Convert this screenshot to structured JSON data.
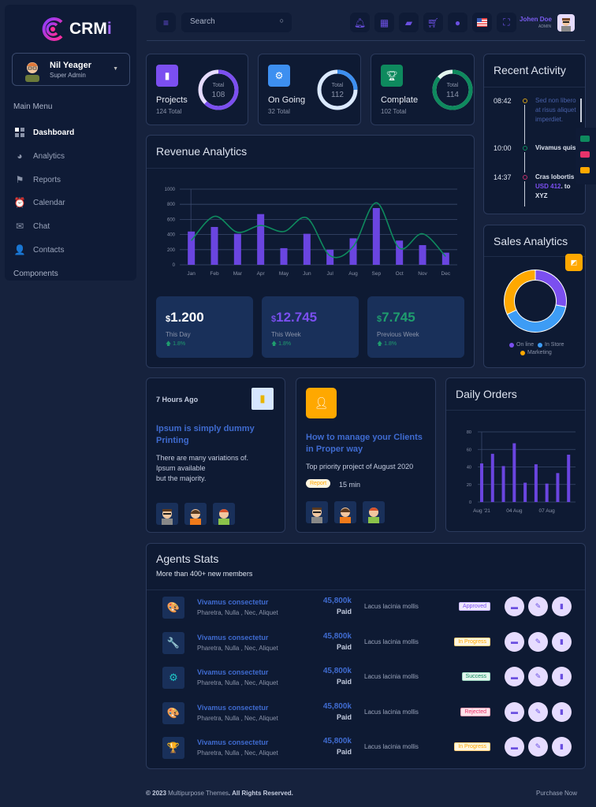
{
  "brand": {
    "name": "CRM",
    "accent": "i"
  },
  "sidebar": {
    "user": {
      "name": "Nil Yeager",
      "role": "Super Admin"
    },
    "section_main": "Main Menu",
    "items": [
      {
        "label": "Dashboard",
        "icon": "grid-icon",
        "active": true
      },
      {
        "label": "Analytics",
        "icon": "pie-icon"
      },
      {
        "label": "Reports",
        "icon": "flag-icon"
      },
      {
        "label": "Calendar",
        "icon": "alarm-icon"
      },
      {
        "label": "Chat",
        "icon": "chat-icon"
      },
      {
        "label": "Contacts",
        "icon": "add-user-icon"
      }
    ],
    "section_components": "Components"
  },
  "topbar": {
    "search_placeholder": "Search",
    "user": {
      "name": "Johen Doe",
      "role": "ADMIN"
    }
  },
  "stats": [
    {
      "title": "Projects",
      "sub": "124 Total",
      "ring_label": "Total",
      "ring_value": "108",
      "color": "#7b4ff0"
    },
    {
      "title": "On Going",
      "sub": "32 Total",
      "ring_label": "Total",
      "ring_value": "112",
      "color": "#3d8ff0"
    },
    {
      "title": "Complate",
      "sub": "102 Total",
      "ring_label": "Total",
      "ring_value": "114",
      "color": "#0e8a5e"
    }
  ],
  "revenue": {
    "title": "Revenue Analytics",
    "boxes": [
      {
        "currency": "$",
        "value": "1.200",
        "label": "This Day",
        "change": "1.8%",
        "color": "#ffffff"
      },
      {
        "currency": "$",
        "value": "12.745",
        "label": "This Week",
        "change": "1.8%",
        "color": "#7b4ff0"
      },
      {
        "currency": "$",
        "value": "7.745",
        "label": "Previous Week",
        "change": "1.8%",
        "color": "#1f9d6e"
      }
    ]
  },
  "recent_activity": {
    "title": "Recent Activity",
    "items": [
      {
        "time": "08:42",
        "text": "Sed non libero at risus aliquet imperdiet."
      },
      {
        "time": "10:00",
        "text": "Vivamus quis"
      },
      {
        "time": "14:37",
        "text_pre": "Cras lobortis",
        "highlight": "USD 412",
        "text_post": ". to XYZ"
      }
    ]
  },
  "sales_analytics": {
    "title": "Sales Analytics",
    "legend": [
      "On line",
      "In Store",
      "Marketing"
    ]
  },
  "news": [
    {
      "date": "7 Hours Ago",
      "title": "Ipsum is simply dummy Printing",
      "body": [
        "There are many variations of.",
        "Ipsum available",
        "but the majority."
      ]
    },
    {
      "title": "How to manage your Clients in Proper way",
      "body": "Top priority project of August 2020",
      "tag": "Report",
      "duration": "15 min"
    }
  ],
  "daily_orders": {
    "title": "Daily Orders"
  },
  "agents": {
    "title": "Agents Stats",
    "subtitle": "More than 400+ new members",
    "rows": [
      {
        "name": "Vivamus consectetur",
        "sub": "Pharetra, Nulla , Nec, Aliquet",
        "amount": "45,800k",
        "paid": "Paid",
        "desc": "Lacus lacinia mollis",
        "status": "Approved",
        "icon": "palette-swatch-icon"
      },
      {
        "name": "Vivamus consectetur",
        "sub": "Pharetra, Nulla , Nec, Aliquet",
        "amount": "45,800k",
        "paid": "Paid",
        "desc": "Lacus lacinia mollis",
        "status": "In Progress",
        "icon": "wrench-gear-icon"
      },
      {
        "name": "Vivamus consectetur",
        "sub": "Pharetra, Nulla , Nec, Aliquet",
        "amount": "45,800k",
        "paid": "Paid",
        "desc": "Lacus lacinia mollis",
        "status": "Success",
        "icon": "gear-check-icon"
      },
      {
        "name": "Vivamus consectetur",
        "sub": "Pharetra, Nulla , Nec, Aliquet",
        "amount": "45,800k",
        "paid": "Paid",
        "desc": "Lacus lacinia mollis",
        "status": "Rejected",
        "icon": "paint-palette-icon"
      },
      {
        "name": "Vivamus consectetur",
        "sub": "Pharetra, Nulla , Nec, Aliquet",
        "amount": "45,800k",
        "paid": "Paid",
        "desc": "Lacus lacinia mollis",
        "status": "In Progress",
        "icon": "trophy-icon"
      }
    ]
  },
  "footer": {
    "copyright_pre": "© 2023 ",
    "company": "Multipurpose Themes",
    "copyright_post": ". All Rights Reserved.",
    "purchase": "Purchase Now"
  },
  "chart_data": [
    {
      "type": "bar",
      "title": "Revenue Analytics",
      "categories": [
        "Jan",
        "Feb",
        "Mar",
        "Apr",
        "May",
        "Jun",
        "Jul",
        "Aug",
        "Sep",
        "Oct",
        "Nov",
        "Dec"
      ],
      "series": [
        {
          "name": "bars",
          "type": "bar",
          "color": "#6a45e0",
          "values": [
            440,
            500,
            410,
            670,
            220,
            410,
            200,
            350,
            750,
            320,
            260,
            160
          ]
        },
        {
          "name": "line",
          "type": "line",
          "color": "#0e8a5e",
          "values": [
            320,
            640,
            430,
            520,
            440,
            620,
            120,
            240,
            820,
            220,
            410,
            110
          ]
        }
      ],
      "yticks": [
        0,
        200,
        400,
        600,
        800,
        1000
      ],
      "ylim": [
        0,
        1000
      ],
      "grid": true
    },
    {
      "type": "pie",
      "title": "Sales Analytics",
      "labels": [
        "On line",
        "In Store",
        "Marketing"
      ],
      "values": [
        28,
        40,
        32
      ],
      "colors": [
        "#7b4ff0",
        "#3d9cf5",
        "#ffa800"
      ]
    },
    {
      "type": "bar",
      "title": "Daily Orders",
      "values": [
        44,
        55,
        41,
        67,
        22,
        43,
        21,
        33,
        54
      ],
      "xticks": [
        "Aug '21",
        "04 Aug",
        "07 Aug"
      ],
      "yticks": [
        0,
        20,
        40,
        60,
        80
      ],
      "ylim": [
        0,
        80
      ],
      "color": "#6a45e0",
      "grid": true
    }
  ]
}
